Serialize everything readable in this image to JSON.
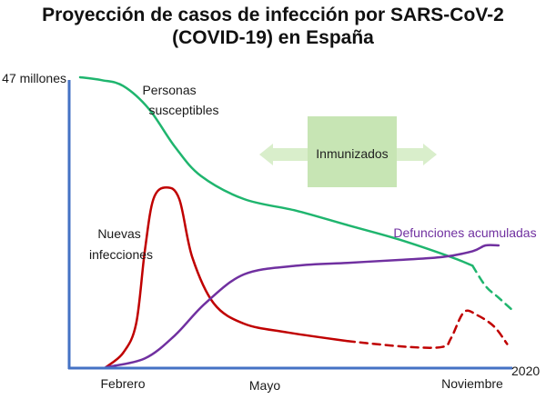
{
  "chart_data": {
    "type": "line",
    "title": "Proyección de casos de infección por SARS-CoV-2",
    "subtitle": "(COVID-19) en España",
    "ylabel": "47 millones",
    "x_end_label": "2020",
    "x_ticks": [
      "Febrero",
      "Mayo",
      "Noviembre"
    ],
    "annotation": "Inmunizados",
    "colors": {
      "axis": "#4472c4",
      "susceptibles": "#1fb56e",
      "infecciones": "#c00000",
      "defunciones": "#7030a0",
      "box": "#c7e5b4",
      "arrows": "#d9eecb"
    },
    "series": [
      {
        "name": "Personas susceptibles",
        "label_lines": [
          "Personas",
          "susceptibles"
        ],
        "key": "susceptibles",
        "values": [
          [
            0.0,
            100
          ],
          [
            0.05,
            99
          ],
          [
            0.1,
            97
          ],
          [
            0.16,
            89
          ],
          [
            0.22,
            76
          ],
          [
            0.28,
            66
          ],
          [
            0.38,
            58
          ],
          [
            0.5,
            54
          ],
          [
            0.62,
            49
          ],
          [
            0.74,
            44
          ],
          [
            0.86,
            38
          ],
          [
            0.91,
            35
          ]
        ],
        "projection": [
          [
            0.91,
            35
          ],
          [
            0.94,
            28
          ],
          [
            0.97,
            24
          ],
          [
            1.0,
            20
          ]
        ]
      },
      {
        "name": "Nuevas infecciones",
        "label_lines": [
          "Nuevas",
          "infecciones"
        ],
        "key": "infecciones",
        "values": [
          [
            0.06,
            0
          ],
          [
            0.1,
            5
          ],
          [
            0.13,
            15
          ],
          [
            0.15,
            40
          ],
          [
            0.17,
            58
          ],
          [
            0.2,
            62
          ],
          [
            0.23,
            58
          ],
          [
            0.26,
            38
          ],
          [
            0.31,
            22
          ],
          [
            0.38,
            15
          ],
          [
            0.48,
            12
          ],
          [
            0.62,
            9
          ]
        ],
        "projection": [
          [
            0.62,
            9
          ],
          [
            0.76,
            7
          ],
          [
            0.84,
            7
          ],
          [
            0.86,
            10
          ],
          [
            0.89,
            19
          ],
          [
            0.92,
            18
          ],
          [
            0.96,
            14
          ],
          [
            0.99,
            8
          ]
        ]
      },
      {
        "name": "Defunciones acumuladas",
        "label_lines": [
          "Defunciones acumuladas"
        ],
        "key": "defunciones",
        "values": [
          [
            0.06,
            0
          ],
          [
            0.15,
            3
          ],
          [
            0.22,
            11
          ],
          [
            0.29,
            22
          ],
          [
            0.38,
            32
          ],
          [
            0.5,
            35
          ],
          [
            0.62,
            36
          ],
          [
            0.74,
            37
          ],
          [
            0.84,
            38
          ],
          [
            0.91,
            40
          ],
          [
            0.94,
            42
          ],
          [
            0.97,
            42
          ]
        ]
      }
    ]
  }
}
